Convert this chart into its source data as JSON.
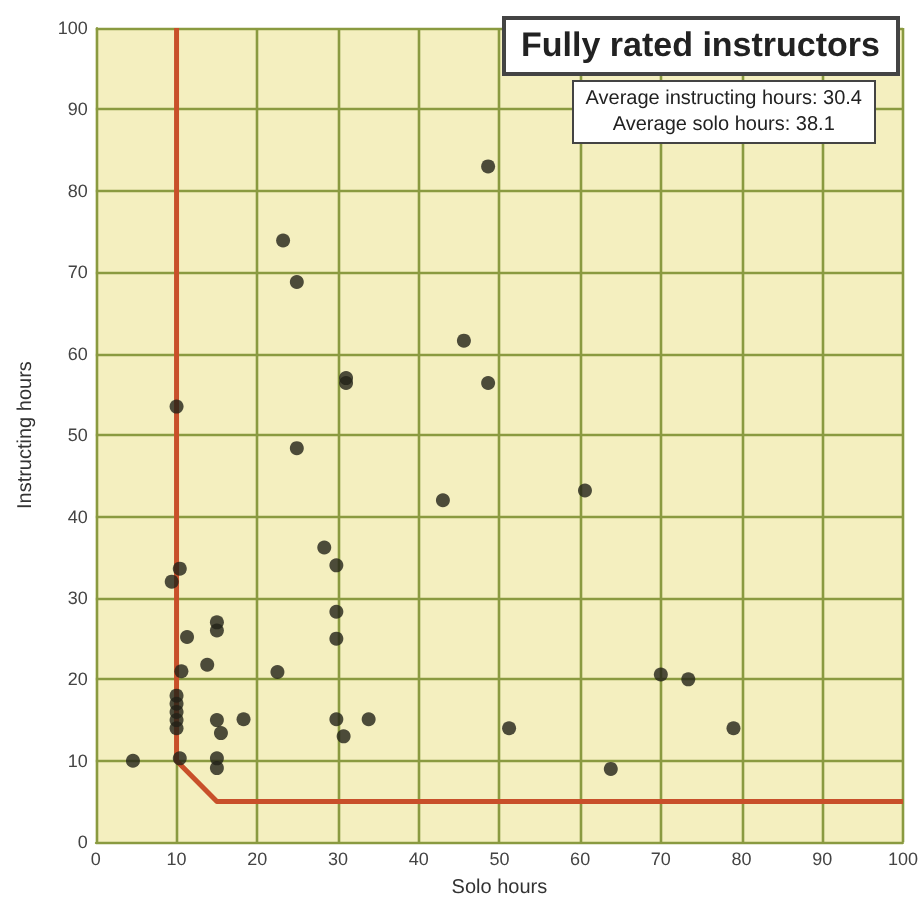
{
  "chart_data": {
    "type": "scatter",
    "title": "Fully rated instructors",
    "annotations": [
      "Average instructing hours: 30.4",
      "Average solo hours: 38.1"
    ],
    "xlabel": "Solo hours",
    "ylabel": "Instructing hours",
    "xlim": [
      0,
      100
    ],
    "xticks": [
      0,
      10,
      20,
      30,
      40,
      50,
      60,
      70,
      80,
      90,
      100
    ],
    "ylim": [
      0,
      100
    ],
    "yticks": [
      0,
      10,
      20,
      30,
      40,
      50,
      60,
      70,
      80,
      90,
      100
    ],
    "grid": true,
    "marker": "circle",
    "series": [
      {
        "type": "line",
        "color": "#c8502a",
        "marker": "none",
        "x": [
          10,
          10,
          15,
          100
        ],
        "values": [
          100,
          10,
          5,
          5
        ]
      },
      {
        "color": "#222218",
        "x": [
          4.6,
          10,
          9.4,
          10.4,
          10.6,
          10,
          10,
          10,
          10,
          10,
          10.4,
          11.3,
          13.8,
          15,
          15,
          15,
          15.5,
          15,
          15,
          18.3,
          22.5,
          28.3,
          29.8,
          29.8,
          29.8,
          29.8,
          30.7,
          33.8,
          24.9,
          23.2,
          24.9,
          31,
          31,
          43,
          45.6,
          48.6,
          48.6,
          51.2,
          60.6,
          63.8,
          70,
          73.4,
          79
        ],
        "values": [
          10,
          53.5,
          32,
          33.6,
          21,
          18,
          17,
          16,
          15,
          14,
          10.3,
          25.2,
          21.8,
          27,
          26,
          15,
          13.4,
          10.3,
          9.1,
          15.1,
          20.9,
          36.2,
          34,
          28.3,
          25,
          15.1,
          13,
          15.1,
          48.4,
          73.9,
          68.8,
          57,
          56.4,
          42,
          61.6,
          83,
          56.4,
          14,
          43.2,
          9,
          20.6,
          20,
          14
        ]
      }
    ]
  }
}
